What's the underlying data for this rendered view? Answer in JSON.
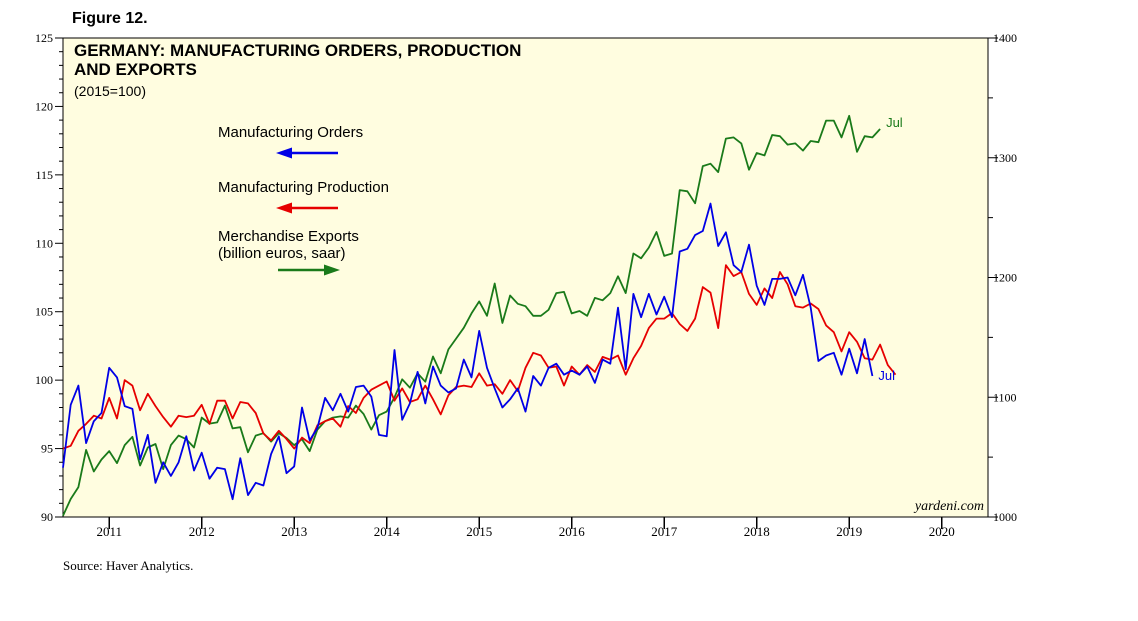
{
  "figure_label": "Figure 12.",
  "source": "Source: Haver Analytics.",
  "watermark": "yardeni.com",
  "chart_data": {
    "type": "line",
    "title_line1": "GERMANY: MANUFACTURING ORDERS, PRODUCTION",
    "title_line2": "AND EXPORTS",
    "subtitle": "(2015=100)",
    "x_start": 2010.5,
    "x_end": 2020.5,
    "year_labels": [
      "2011",
      "2012",
      "2013",
      "2014",
      "2015",
      "2016",
      "2017",
      "2018",
      "2019",
      "2020"
    ],
    "left_axis": {
      "min": 90,
      "max": 125,
      "ticks": [
        "90",
        "95",
        "100",
        "105",
        "110",
        "115",
        "120",
        "125"
      ]
    },
    "right_axis": {
      "min": 1000,
      "max": 1400,
      "ticks": [
        "1000",
        "1100",
        "1200",
        "1300",
        "1400"
      ]
    },
    "colors": {
      "orders": "#0000e6",
      "production": "#e60000",
      "exports": "#1a7a1a",
      "panel": "#fffde0"
    },
    "end_labels": {
      "exports": "Jul",
      "orders": "Jul"
    },
    "series": [
      {
        "name": "Manufacturing Orders",
        "axis": "left",
        "color": "#0000e6",
        "x_start": 2010.5,
        "step": 0.0833333,
        "values": [
          93.6,
          98.2,
          99.6,
          95.4,
          97.0,
          97.6,
          100.9,
          100.2,
          98.1,
          97.9,
          94.2,
          96.0,
          92.5,
          94.0,
          93.0,
          94.0,
          95.9,
          93.4,
          94.7,
          92.8,
          93.6,
          93.5,
          91.3,
          94.3,
          91.6,
          92.5,
          92.3,
          94.6,
          95.9,
          93.2,
          93.7,
          98.0,
          95.6,
          96.5,
          98.7,
          97.8,
          99.0,
          97.7,
          99.5,
          99.6,
          98.8,
          96.0,
          95.9,
          102.2,
          97.1,
          98.3,
          100.6,
          98.3,
          101.0,
          99.6,
          99.1,
          99.4,
          101.5,
          100.2,
          103.6,
          100.9,
          99.4,
          98.0,
          98.6,
          99.4,
          97.7,
          100.3,
          99.6,
          100.9,
          101.2,
          100.4,
          100.7,
          100.4,
          101.0,
          99.8,
          101.5,
          101.2,
          105.3,
          100.8,
          106.3,
          104.6,
          106.3,
          104.8,
          106.1,
          104.6,
          109.4,
          109.6,
          110.6,
          110.9,
          112.9,
          109.8,
          110.8,
          108.4,
          107.9,
          109.9,
          106.9,
          105.5,
          107.4,
          107.4,
          107.5,
          106.2,
          107.7,
          105.3,
          101.4,
          101.8,
          102.0,
          100.4,
          102.3,
          100.5,
          103.0,
          100.3
        ]
      },
      {
        "name": "Manufacturing Production",
        "axis": "left",
        "color": "#e60000",
        "x_start": 2010.5,
        "step": 0.0833333,
        "values": [
          95.0,
          95.2,
          96.3,
          96.8,
          97.4,
          97.2,
          98.7,
          97.2,
          100.0,
          99.6,
          97.8,
          99.0,
          98.1,
          97.3,
          96.6,
          97.4,
          97.3,
          97.4,
          98.2,
          96.8,
          98.5,
          98.5,
          97.2,
          98.4,
          98.3,
          97.6,
          96.1,
          95.6,
          96.3,
          95.7,
          95.0,
          95.8,
          95.4,
          96.7,
          97.0,
          97.2,
          96.6,
          98.1,
          97.6,
          98.7,
          99.3,
          99.6,
          99.9,
          98.5,
          99.4,
          98.4,
          98.6,
          99.6,
          98.6,
          97.5,
          98.9,
          99.5,
          99.6,
          99.5,
          100.5,
          99.6,
          99.7,
          99.0,
          100.0,
          99.2,
          100.9,
          102.0,
          101.8,
          100.9,
          101.0,
          99.6,
          101.0,
          100.4,
          101.1,
          100.6,
          101.7,
          101.5,
          101.8,
          100.4,
          101.6,
          102.5,
          103.8,
          104.5,
          104.5,
          104.9,
          104.1,
          103.6,
          104.5,
          106.8,
          106.4,
          103.8,
          108.4,
          107.6,
          107.9,
          106.3,
          105.5,
          106.7,
          106.0,
          107.9,
          107.0,
          105.4,
          105.3,
          105.6,
          105.2,
          104.0,
          103.5,
          102.1,
          103.5,
          102.8,
          101.6,
          101.5,
          102.6,
          101.1,
          100.4
        ]
      },
      {
        "name": "Merchandise Exports",
        "axis": "right",
        "color": "#1a7a1a",
        "x_start": 2010.5,
        "step": 0.0833333,
        "values": [
          1001,
          1015,
          1025,
          1056,
          1038,
          1048,
          1055,
          1045,
          1060,
          1067,
          1043,
          1058,
          1061,
          1040,
          1060,
          1068,
          1065,
          1058,
          1083,
          1078,
          1079,
          1093,
          1074,
          1075,
          1054,
          1068,
          1070,
          1063,
          1070,
          1066,
          1060,
          1065,
          1055,
          1073,
          1080,
          1083,
          1084,
          1083,
          1093,
          1086,
          1073,
          1085,
          1088,
          1100,
          1115,
          1108,
          1120,
          1113,
          1134,
          1120,
          1140,
          1149,
          1158,
          1170,
          1180,
          1168,
          1195,
          1162,
          1185,
          1178,
          1176,
          1168,
          1168,
          1173,
          1187,
          1188,
          1170,
          1172,
          1168,
          1183,
          1181,
          1187,
          1201,
          1187,
          1220,
          1216,
          1225,
          1238,
          1218,
          1220,
          1273,
          1272,
          1262,
          1293,
          1295,
          1288,
          1316,
          1317,
          1312,
          1290,
          1304,
          1302,
          1319,
          1318,
          1311,
          1312,
          1306,
          1314,
          1313,
          1331,
          1331,
          1317,
          1335,
          1305,
          1318,
          1317,
          1324
        ]
      }
    ],
    "legend": [
      {
        "label": "Manufacturing Orders",
        "sublabel": "",
        "color": "#0000e6",
        "arrow": "left"
      },
      {
        "label": "Manufacturing Production",
        "sublabel": "",
        "color": "#e60000",
        "arrow": "left"
      },
      {
        "label": "Merchandise Exports",
        "sublabel": "(billion euros, saar)",
        "color": "#1a7a1a",
        "arrow": "right"
      }
    ]
  }
}
